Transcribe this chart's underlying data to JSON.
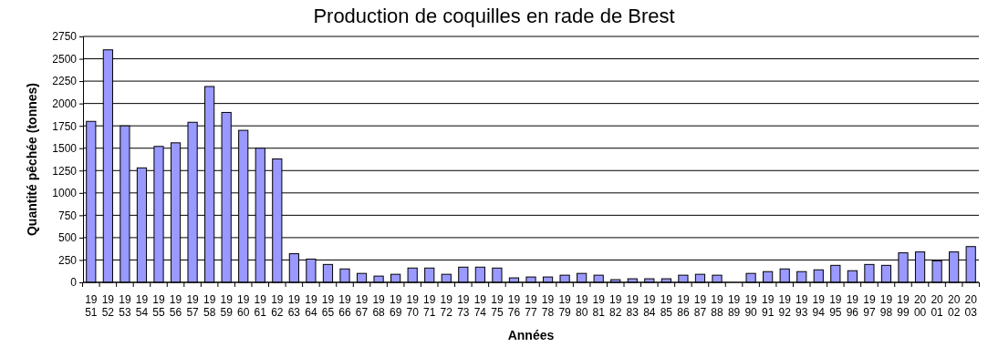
{
  "chart_data": {
    "type": "bar",
    "title": "Production de coquilles en rade de Brest",
    "xlabel": "Années",
    "ylabel": "Quantité pêchée (tonnes)",
    "categories": [
      "1951",
      "1952",
      "1953",
      "1954",
      "1955",
      "1956",
      "1957",
      "1958",
      "1959",
      "1960",
      "1961",
      "1962",
      "1963",
      "1964",
      "1965",
      "1966",
      "1967",
      "1968",
      "1969",
      "1970",
      "1971",
      "1972",
      "1973",
      "1974",
      "1975",
      "1976",
      "1977",
      "1978",
      "1979",
      "1980",
      "1981",
      "1982",
      "1983",
      "1984",
      "1985",
      "1986",
      "1987",
      "1988",
      "1989",
      "1990",
      "1991",
      "1992",
      "1993",
      "1994",
      "1995",
      "1996",
      "1997",
      "1998",
      "1999",
      "2000",
      "2001",
      "2002",
      "2003"
    ],
    "values": [
      1800,
      2600,
      1750,
      1280,
      1520,
      1560,
      1790,
      2190,
      1900,
      1700,
      1500,
      1380,
      320,
      260,
      200,
      150,
      100,
      70,
      90,
      160,
      160,
      90,
      170,
      170,
      160,
      50,
      60,
      60,
      80,
      100,
      80,
      30,
      40,
      40,
      40,
      80,
      90,
      80,
      null,
      100,
      120,
      150,
      120,
      140,
      190,
      130,
      200,
      190,
      330,
      340,
      240,
      340,
      400
    ],
    "color": "#9999ff",
    "ylim": [
      0,
      2750
    ],
    "yticks": [
      0,
      250,
      500,
      750,
      1000,
      1250,
      1500,
      1750,
      2000,
      2250,
      2500,
      2750
    ],
    "grid": "y",
    "legend": false
  }
}
